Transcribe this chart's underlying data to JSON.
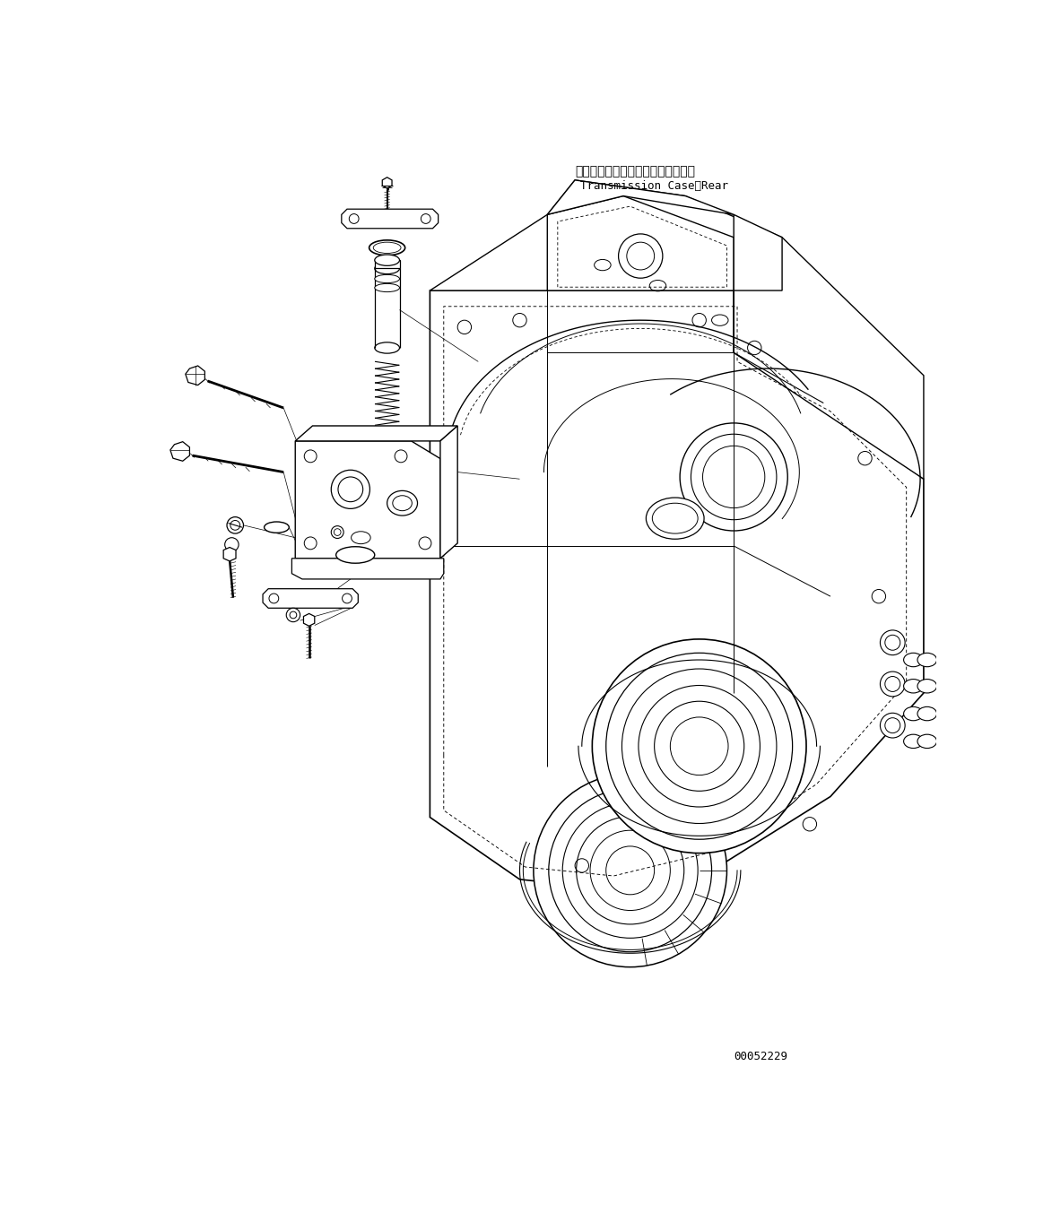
{
  "title_jp": "トランスミッションケース、リヤー",
  "title_en": "Transmission Case．Rear",
  "part_number": "00052229",
  "bg_color": "#ffffff",
  "lc": "#000000",
  "lw_main": 1.0,
  "lw_thin": 0.6,
  "lw_thick": 1.3,
  "title_fs": 10,
  "label_fs": 9
}
